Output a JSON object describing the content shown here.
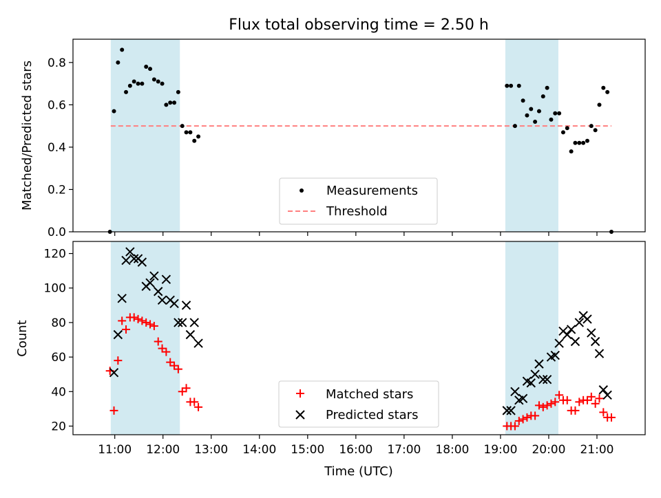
{
  "title": "Flux total observing time = 2.50 h",
  "colors": {
    "shade": "#add8e6",
    "threshold": "#ff7f7f",
    "matched": "#ff0000",
    "predicted": "#000000",
    "measurements": "#000000"
  },
  "chart_data": [
    {
      "type": "scatter",
      "panel": "top",
      "ylabel": "Matched/Predicted stars",
      "ylim": [
        0,
        0.91
      ],
      "yticks": [
        {
          "v": 0.0,
          "label": "0.0"
        },
        {
          "v": 0.2,
          "label": "0.2"
        },
        {
          "v": 0.4,
          "label": "0.4"
        },
        {
          "v": 0.6,
          "label": "0.6"
        },
        {
          "v": 0.8,
          "label": "0.8"
        }
      ],
      "shaded_intervals": [
        [
          "10:55",
          "12:21"
        ],
        [
          "19:06",
          "20:12"
        ]
      ],
      "threshold": {
        "name": "Threshold",
        "value": 0.5,
        "x": [
          "10:55",
          "21:18"
        ]
      },
      "legend": {
        "position": "lower center"
      },
      "series": [
        {
          "name": "Measurements",
          "marker": "dot",
          "points": [
            [
              "10:54",
              0.0
            ],
            [
              "10:59",
              0.57
            ],
            [
              "11:04",
              0.8
            ],
            [
              "11:09",
              0.86
            ],
            [
              "11:14",
              0.66
            ],
            [
              "11:19",
              0.69
            ],
            [
              "11:24",
              0.71
            ],
            [
              "11:29",
              0.7
            ],
            [
              "11:34",
              0.7
            ],
            [
              "11:39",
              0.78
            ],
            [
              "11:44",
              0.77
            ],
            [
              "11:49",
              0.72
            ],
            [
              "11:54",
              0.71
            ],
            [
              "11:59",
              0.7
            ],
            [
              "12:04",
              0.6
            ],
            [
              "12:09",
              0.61
            ],
            [
              "12:14",
              0.61
            ],
            [
              "12:19",
              0.66
            ],
            [
              "12:24",
              0.5
            ],
            [
              "12:29",
              0.47
            ],
            [
              "12:34",
              0.47
            ],
            [
              "12:39",
              0.43
            ],
            [
              "12:44",
              0.45
            ],
            [
              "19:08",
              0.69
            ],
            [
              "19:13",
              0.69
            ],
            [
              "19:18",
              0.5
            ],
            [
              "19:23",
              0.69
            ],
            [
              "19:28",
              0.62
            ],
            [
              "19:33",
              0.55
            ],
            [
              "19:38",
              0.58
            ],
            [
              "19:43",
              0.52
            ],
            [
              "19:48",
              0.57
            ],
            [
              "19:53",
              0.64
            ],
            [
              "19:58",
              0.68
            ],
            [
              "20:03",
              0.53
            ],
            [
              "20:08",
              0.56
            ],
            [
              "20:13",
              0.56
            ],
            [
              "20:18",
              0.47
            ],
            [
              "20:23",
              0.49
            ],
            [
              "20:28",
              0.38
            ],
            [
              "20:33",
              0.42
            ],
            [
              "20:38",
              0.42
            ],
            [
              "20:43",
              0.42
            ],
            [
              "20:48",
              0.43
            ],
            [
              "20:53",
              0.5
            ],
            [
              "20:58",
              0.48
            ],
            [
              "21:03",
              0.6
            ],
            [
              "21:08",
              0.68
            ],
            [
              "21:13",
              0.66
            ],
            [
              "21:18",
              0.0
            ]
          ]
        }
      ]
    },
    {
      "type": "scatter",
      "panel": "bottom",
      "xlabel": "Time (UTC)",
      "ylabel": "Count",
      "ylim": [
        15,
        127
      ],
      "yticks": [
        {
          "v": 20,
          "label": "20"
        },
        {
          "v": 40,
          "label": "40"
        },
        {
          "v": 60,
          "label": "60"
        },
        {
          "v": 80,
          "label": "80"
        },
        {
          "v": 100,
          "label": "100"
        },
        {
          "v": 120,
          "label": "120"
        }
      ],
      "xlim": [
        "10:08",
        "22:00"
      ],
      "xticks": [
        "11:00",
        "12:00",
        "13:00",
        "14:00",
        "15:00",
        "16:00",
        "17:00",
        "18:00",
        "19:00",
        "20:00",
        "21:00"
      ],
      "shaded_intervals": [
        [
          "10:55",
          "12:21"
        ],
        [
          "19:06",
          "20:12"
        ]
      ],
      "legend": {
        "position": "lower center"
      },
      "series": [
        {
          "name": "Matched stars",
          "marker": "plus",
          "points": [
            [
              "10:54",
              52
            ],
            [
              "10:59",
              29
            ],
            [
              "11:04",
              58
            ],
            [
              "11:09",
              81
            ],
            [
              "11:14",
              76
            ],
            [
              "11:19",
              83
            ],
            [
              "11:24",
              83
            ],
            [
              "11:29",
              82
            ],
            [
              "11:34",
              81
            ],
            [
              "11:39",
              80
            ],
            [
              "11:44",
              79
            ],
            [
              "11:49",
              78
            ],
            [
              "11:54",
              69
            ],
            [
              "11:59",
              65
            ],
            [
              "12:04",
              63
            ],
            [
              "12:09",
              57
            ],
            [
              "12:14",
              55
            ],
            [
              "12:19",
              53
            ],
            [
              "12:24",
              40
            ],
            [
              "12:29",
              42
            ],
            [
              "12:34",
              34
            ],
            [
              "12:39",
              34
            ],
            [
              "12:44",
              31
            ],
            [
              "19:08",
              20
            ],
            [
              "19:13",
              20
            ],
            [
              "19:18",
              20
            ],
            [
              "19:23",
              23
            ],
            [
              "19:28",
              24
            ],
            [
              "19:33",
              25
            ],
            [
              "19:38",
              26
            ],
            [
              "19:43",
              26
            ],
            [
              "19:48",
              32
            ],
            [
              "19:53",
              31
            ],
            [
              "19:58",
              32
            ],
            [
              "20:03",
              33
            ],
            [
              "20:08",
              34
            ],
            [
              "20:13",
              38
            ],
            [
              "20:18",
              35
            ],
            [
              "20:23",
              35
            ],
            [
              "20:28",
              29
            ],
            [
              "20:33",
              29
            ],
            [
              "20:38",
              34
            ],
            [
              "20:43",
              35
            ],
            [
              "20:48",
              35
            ],
            [
              "20:53",
              37
            ],
            [
              "20:58",
              33
            ],
            [
              "21:03",
              36
            ],
            [
              "21:08",
              28
            ],
            [
              "21:13",
              25
            ],
            [
              "21:18",
              25
            ]
          ]
        },
        {
          "name": "Predicted stars",
          "marker": "x",
          "points": [
            [
              "10:59",
              51
            ],
            [
              "11:04",
              73
            ],
            [
              "11:09",
              94
            ],
            [
              "11:14",
              116
            ],
            [
              "11:19",
              121
            ],
            [
              "11:24",
              117
            ],
            [
              "11:29",
              117
            ],
            [
              "11:34",
              115
            ],
            [
              "11:39",
              101
            ],
            [
              "11:44",
              103
            ],
            [
              "11:49",
              107
            ],
            [
              "11:54",
              98
            ],
            [
              "11:59",
              93
            ],
            [
              "12:04",
              105
            ],
            [
              "12:09",
              93
            ],
            [
              "12:14",
              91
            ],
            [
              "12:19",
              80
            ],
            [
              "12:24",
              80
            ],
            [
              "12:29",
              90
            ],
            [
              "12:34",
              73
            ],
            [
              "12:39",
              80
            ],
            [
              "12:44",
              68
            ],
            [
              "19:08",
              29
            ],
            [
              "19:13",
              29
            ],
            [
              "19:18",
              40
            ],
            [
              "19:23",
              35
            ],
            [
              "19:28",
              36
            ],
            [
              "19:33",
              46
            ],
            [
              "19:38",
              45
            ],
            [
              "19:43",
              50
            ],
            [
              "19:48",
              56
            ],
            [
              "19:53",
              47
            ],
            [
              "19:58",
              47
            ],
            [
              "20:03",
              60
            ],
            [
              "20:08",
              61
            ],
            [
              "20:13",
              68
            ],
            [
              "20:18",
              75
            ],
            [
              "20:23",
              73
            ],
            [
              "20:28",
              76
            ],
            [
              "20:33",
              69
            ],
            [
              "20:38",
              80
            ],
            [
              "20:43",
              84
            ],
            [
              "20:48",
              82
            ],
            [
              "20:53",
              74
            ],
            [
              "20:58",
              69
            ],
            [
              "21:03",
              62
            ],
            [
              "21:08",
              41
            ],
            [
              "21:13",
              38
            ]
          ]
        }
      ]
    }
  ]
}
